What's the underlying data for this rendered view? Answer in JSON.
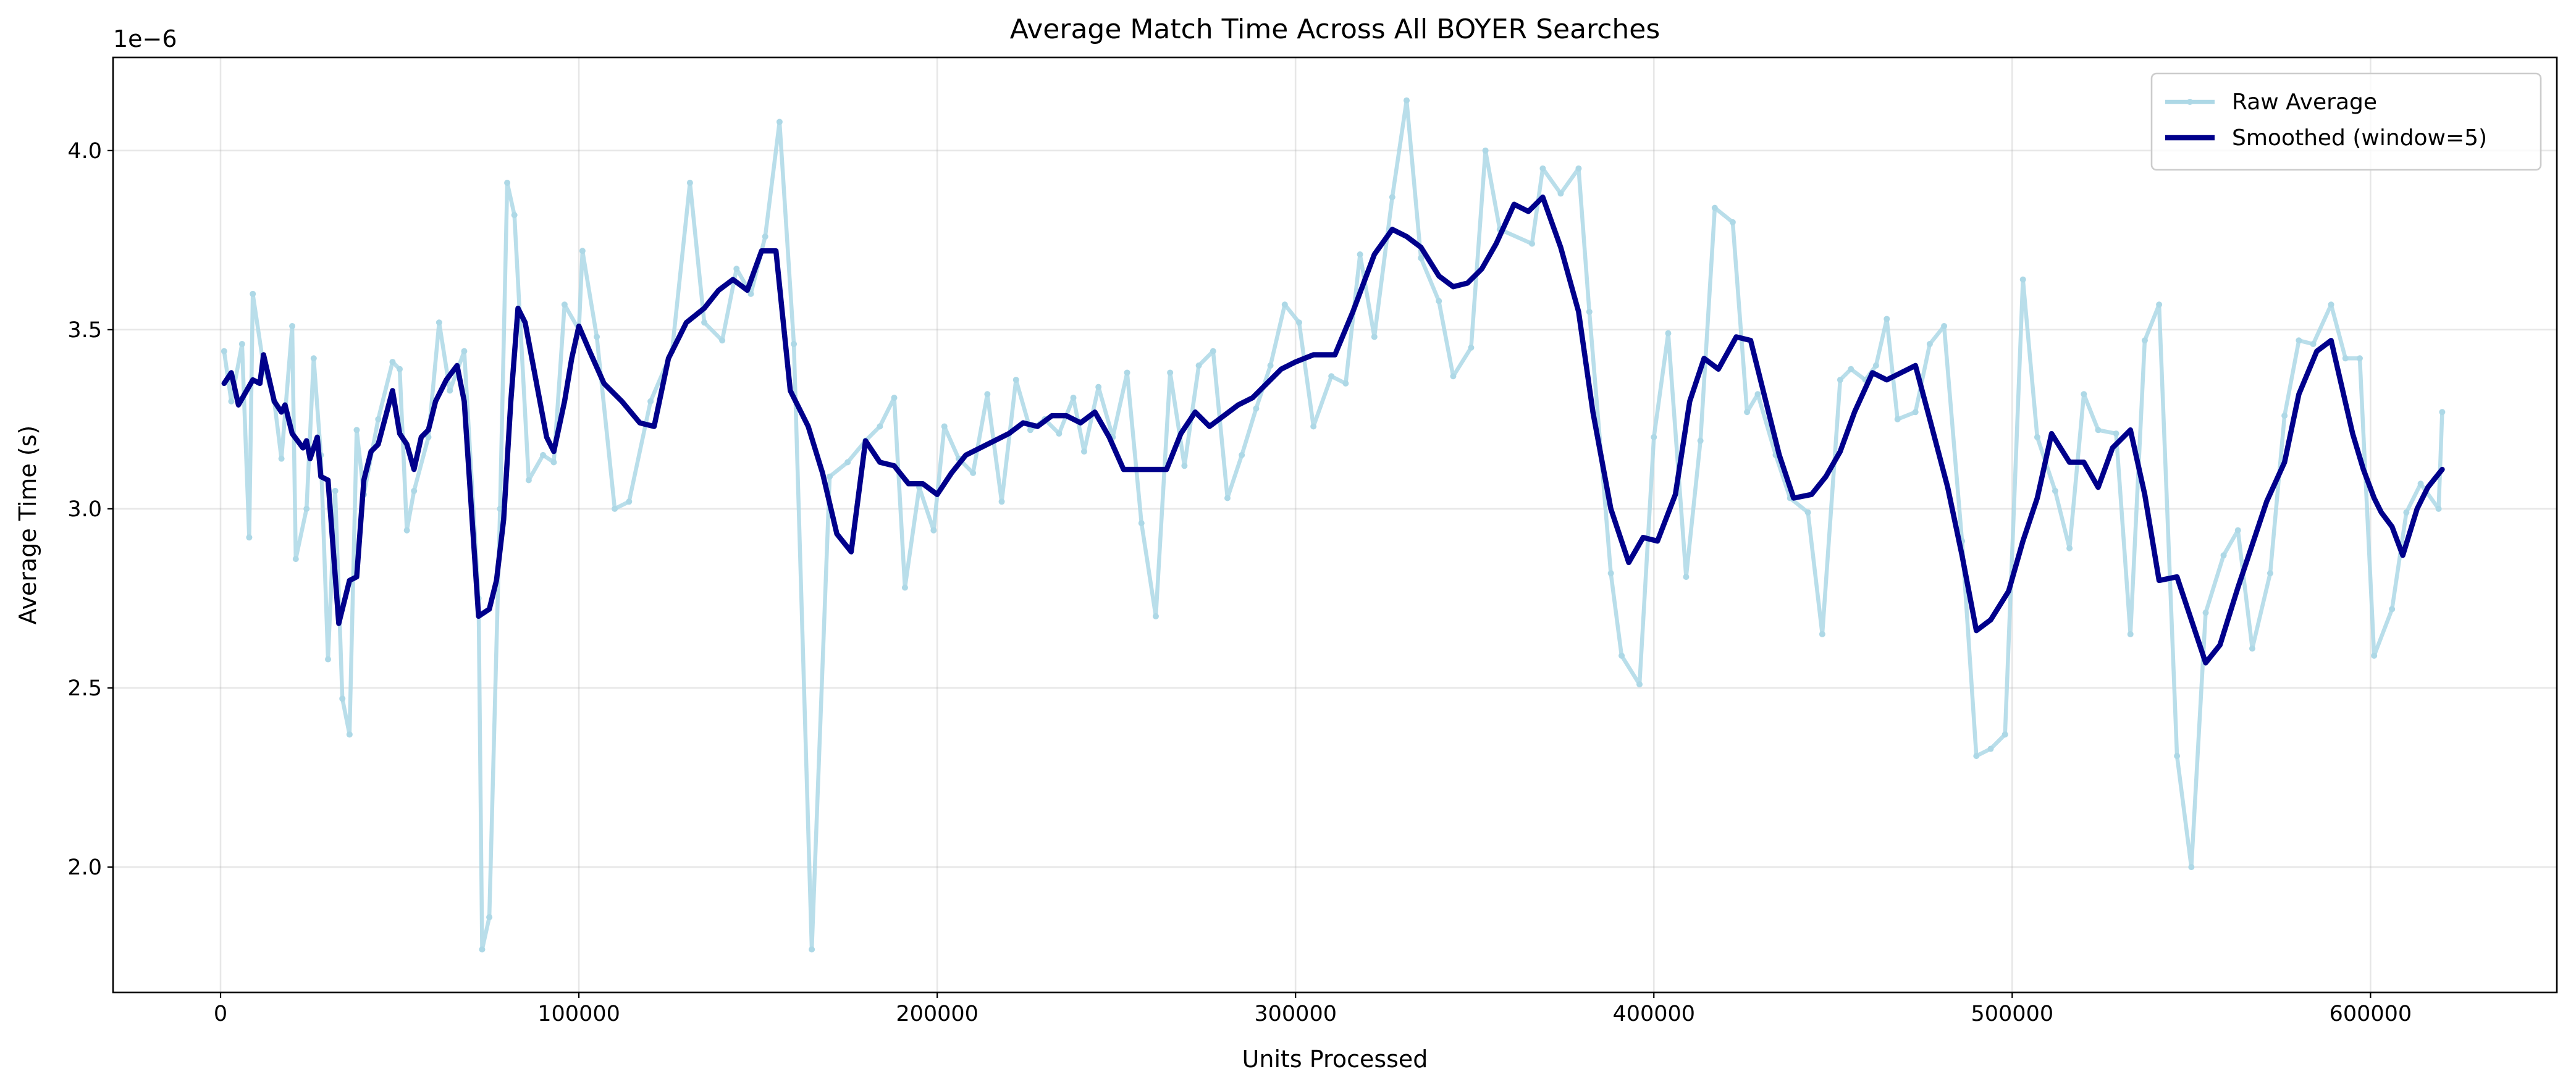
{
  "chart_data": {
    "type": "line",
    "title": "Average Match Time Across All BOYER Searches",
    "x_label": "Units Processed",
    "y_label": "Average Time (s)",
    "y_offset_label": "1e−6",
    "xlim": [
      -30000,
      652000
    ],
    "ylim": [
      1.65,
      4.26
    ],
    "xticks": [
      0,
      100000,
      200000,
      300000,
      400000,
      500000,
      600000
    ],
    "yticks": [
      {
        "value": 2,
        "label": "2.0"
      },
      {
        "value": 2.5,
        "label": "2.5"
      },
      {
        "value": 3,
        "label": "3.0"
      },
      {
        "value": 3.5,
        "label": "3.5"
      },
      {
        "value": 4,
        "label": "4.0"
      }
    ],
    "grid": true,
    "legend_position": "upper-right",
    "series": [
      {
        "name": "Raw Average",
        "color": "#add8e6",
        "markers": true,
        "x": [
          1000,
          3000,
          6000,
          8000,
          9000,
          12000,
          15000,
          17000,
          20000,
          21000,
          24000,
          26000,
          28000,
          30000,
          32000,
          34000,
          36000,
          38000,
          40000,
          44000,
          48000,
          50000,
          52000,
          54000,
          58000,
          61000,
          64000,
          68000,
          72000,
          73000,
          75000,
          78000,
          80000,
          82000,
          86000,
          90000,
          93000,
          96000,
          100000,
          101000,
          105000,
          110000,
          114000,
          120000,
          126000,
          131000,
          135000,
          140000,
          144000,
          148000,
          152000,
          156000,
          160000,
          165000,
          170000,
          175000,
          180000,
          184000,
          188000,
          191000,
          195000,
          199000,
          202000,
          206000,
          210000,
          214000,
          218000,
          222000,
          226000,
          230000,
          234000,
          238000,
          241000,
          245000,
          249000,
          253000,
          257000,
          261000,
          265000,
          269000,
          273000,
          277000,
          281000,
          285000,
          289000,
          293000,
          297000,
          301000,
          305000,
          310000,
          314000,
          318000,
          322000,
          327000,
          331000,
          335000,
          340000,
          344000,
          349000,
          353000,
          357000,
          366000,
          369000,
          374000,
          379000,
          382000,
          388000,
          391000,
          396000,
          400000,
          404000,
          409000,
          413000,
          417000,
          422000,
          426000,
          429000,
          434000,
          438000,
          443000,
          447000,
          452000,
          455000,
          459000,
          462000,
          465000,
          468000,
          473000,
          477000,
          481000,
          486000,
          490000,
          494000,
          498000,
          503000,
          507000,
          512000,
          516000,
          520000,
          524000,
          529000,
          533000,
          537000,
          541000,
          546000,
          550000,
          554000,
          559000,
          563000,
          567000,
          572000,
          576000,
          580000,
          584000,
          589000,
          593000,
          597000,
          601000,
          606000,
          610000,
          614000,
          619000,
          620000
        ],
        "values": [
          3.44,
          3.3,
          3.46,
          2.92,
          3.6,
          3.4,
          3.3,
          3.14,
          3.51,
          2.86,
          3.0,
          3.42,
          3.15,
          2.58,
          3.05,
          2.47,
          2.37,
          3.22,
          3.04,
          3.25,
          3.41,
          3.39,
          2.94,
          3.05,
          3.2,
          3.52,
          3.33,
          3.44,
          2.75,
          1.77,
          1.86,
          3.0,
          3.91,
          3.82,
          3.08,
          3.15,
          3.13,
          3.57,
          3.5,
          3.72,
          3.48,
          3.0,
          3.02,
          3.3,
          3.44,
          3.91,
          3.52,
          3.47,
          3.67,
          3.6,
          3.76,
          4.08,
          3.46,
          1.77,
          3.09,
          3.13,
          3.19,
          3.23,
          3.31,
          2.78,
          3.06,
          2.94,
          3.23,
          3.14,
          3.1,
          3.32,
          3.02,
          3.36,
          3.22,
          3.25,
          3.21,
          3.31,
          3.16,
          3.34,
          3.2,
          3.38,
          2.96,
          2.7,
          3.38,
          3.12,
          3.4,
          3.44,
          3.03,
          3.15,
          3.28,
          3.4,
          3.57,
          3.52,
          3.23,
          3.37,
          3.35,
          3.71,
          3.48,
          3.87,
          4.14,
          3.7,
          3.58,
          3.37,
          3.45,
          4.0,
          3.78,
          3.74,
          3.95,
          3.88,
          3.95,
          3.55,
          2.82,
          2.59,
          2.51,
          3.2,
          3.49,
          2.81,
          3.19,
          3.84,
          3.8,
          3.27,
          3.32,
          3.15,
          3.03,
          2.99,
          2.65,
          3.36,
          3.39,
          3.36,
          3.4,
          3.53,
          3.25,
          3.27,
          3.46,
          3.51,
          2.91,
          2.31,
          2.33,
          2.37,
          3.64,
          3.2,
          3.05,
          2.89,
          3.32,
          3.22,
          3.21,
          2.65,
          3.47,
          3.57,
          2.31,
          2.0,
          2.71,
          2.87,
          2.94,
          2.61,
          2.82,
          3.26,
          3.47,
          3.46,
          3.57,
          3.42,
          3.42,
          2.59,
          2.72,
          2.99,
          3.07,
          3.0,
          3.27
        ]
      },
      {
        "name": "Smoothed (window=5)",
        "color": "#00008b",
        "markers": false,
        "x": [
          1000,
          3000,
          5000,
          9000,
          11000,
          12000,
          15000,
          17000,
          18000,
          20000,
          23000,
          24000,
          25000,
          27000,
          28000,
          30000,
          33000,
          36000,
          38000,
          40000,
          42000,
          44000,
          48000,
          50000,
          52000,
          54000,
          56000,
          58000,
          60000,
          63000,
          66000,
          68000,
          72000,
          75000,
          77000,
          79000,
          81000,
          83000,
          85000,
          88000,
          91000,
          93000,
          96000,
          98000,
          100000,
          103000,
          107000,
          112000,
          117000,
          121000,
          125000,
          130000,
          135000,
          139000,
          143000,
          147000,
          151000,
          155000,
          159000,
          164000,
          168000,
          172000,
          176000,
          180000,
          184000,
          188000,
          192000,
          196000,
          200000,
          204000,
          208000,
          212000,
          216000,
          220000,
          224000,
          228000,
          232000,
          236000,
          240000,
          244000,
          248000,
          252000,
          256000,
          260000,
          264000,
          268000,
          272000,
          276000,
          280000,
          284000,
          288000,
          292000,
          296000,
          300000,
          305000,
          311000,
          316000,
          322000,
          327000,
          331000,
          335000,
          340000,
          344000,
          348000,
          352000,
          356000,
          361000,
          365000,
          369000,
          374000,
          379000,
          383000,
          388000,
          393000,
          397000,
          401000,
          406000,
          410000,
          414000,
          418000,
          423000,
          427000,
          431000,
          435000,
          439000,
          444000,
          448000,
          452000,
          456000,
          461000,
          465000,
          469000,
          473000,
          477000,
          482000,
          486000,
          490000,
          494000,
          499000,
          503000,
          507000,
          511000,
          516000,
          520000,
          524000,
          528000,
          533000,
          537000,
          541000,
          546000,
          550000,
          554000,
          558000,
          563000,
          567000,
          571000,
          576000,
          580000,
          585000,
          589000,
          592000,
          595000,
          598000,
          601000,
          603000,
          606000,
          609000,
          613000,
          616000,
          620000
        ],
        "values": [
          3.35,
          3.38,
          3.29,
          3.36,
          3.35,
          3.43,
          3.3,
          3.27,
          3.29,
          3.21,
          3.17,
          3.19,
          3.14,
          3.2,
          3.09,
          3.08,
          2.68,
          2.8,
          2.81,
          3.08,
          3.16,
          3.18,
          3.33,
          3.21,
          3.18,
          3.11,
          3.2,
          3.22,
          3.3,
          3.36,
          3.4,
          3.3,
          2.7,
          2.72,
          2.8,
          2.97,
          3.3,
          3.56,
          3.52,
          3.36,
          3.2,
          3.16,
          3.3,
          3.42,
          3.51,
          3.44,
          3.35,
          3.3,
          3.24,
          3.23,
          3.42,
          3.52,
          3.56,
          3.61,
          3.64,
          3.61,
          3.72,
          3.72,
          3.33,
          3.23,
          3.1,
          2.93,
          2.88,
          3.19,
          3.13,
          3.12,
          3.07,
          3.07,
          3.04,
          3.1,
          3.15,
          3.17,
          3.19,
          3.21,
          3.24,
          3.23,
          3.26,
          3.26,
          3.24,
          3.27,
          3.2,
          3.11,
          3.11,
          3.11,
          3.11,
          3.21,
          3.27,
          3.23,
          3.26,
          3.29,
          3.31,
          3.35,
          3.39,
          3.41,
          3.43,
          3.43,
          3.55,
          3.71,
          3.78,
          3.76,
          3.73,
          3.65,
          3.62,
          3.63,
          3.67,
          3.74,
          3.85,
          3.83,
          3.87,
          3.73,
          3.55,
          3.27,
          3.0,
          2.85,
          2.92,
          2.91,
          3.04,
          3.3,
          3.42,
          3.39,
          3.48,
          3.47,
          3.31,
          3.15,
          3.03,
          3.04,
          3.09,
          3.16,
          3.27,
          3.38,
          3.36,
          3.38,
          3.4,
          3.25,
          3.06,
          2.87,
          2.66,
          2.69,
          2.77,
          2.91,
          3.03,
          3.21,
          3.13,
          3.13,
          3.06,
          3.17,
          3.22,
          3.04,
          2.8,
          2.81,
          2.69,
          2.57,
          2.62,
          2.78,
          2.9,
          3.02,
          3.13,
          3.32,
          3.44,
          3.47,
          3.34,
          3.21,
          3.11,
          3.03,
          2.99,
          2.95,
          2.87,
          3.0,
          3.06,
          3.11
        ]
      }
    ]
  }
}
